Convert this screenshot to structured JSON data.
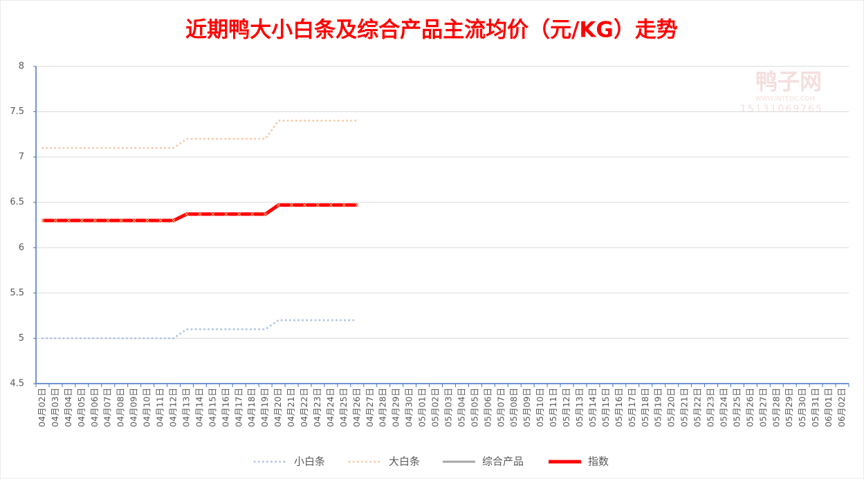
{
  "chart_data": {
    "type": "line",
    "title": "近期鸭大小白条及综合产品主流均价（元/KG）走势",
    "categories": [
      "04月02日",
      "04月03日",
      "04月04日",
      "04月05日",
      "04月06日",
      "04月07日",
      "04月08日",
      "04月09日",
      "04月10日",
      "04月11日",
      "04月12日",
      "04月13日",
      "04月14日",
      "04月15日",
      "04月16日",
      "04月17日",
      "04月18日",
      "04月19日",
      "04月20日",
      "04月21日",
      "04月22日",
      "04月23日",
      "04月24日",
      "04月25日",
      "04月26日",
      "04月27日",
      "04月28日",
      "04月29日",
      "04月30日",
      "05月01日",
      "05月02日",
      "05月03日",
      "05月04日",
      "05月05日",
      "05月06日",
      "05月07日",
      "05月08日",
      "05月09日",
      "05月10日",
      "05月11日",
      "05月12日",
      "05月13日",
      "05月14日",
      "05月15日",
      "05月16日",
      "05月17日",
      "05月18日",
      "05月19日",
      "05月20日",
      "05月21日",
      "05月22日",
      "05月23日",
      "05月24日",
      "05月25日",
      "05月26日",
      "05月27日",
      "05月28日",
      "05月29日",
      "05月30日",
      "05月31日",
      "06月01日",
      "06月02日"
    ],
    "series": [
      {
        "name": "小白条",
        "color": "#b4c7e7",
        "style": "dotted",
        "values": [
          5,
          5,
          5,
          5,
          5,
          5,
          5,
          5,
          5,
          5,
          5,
          5.1,
          5.1,
          5.1,
          5.1,
          5.1,
          5.1,
          5.1,
          5.2,
          5.2,
          5.2,
          5.2,
          5.2,
          5.2,
          5.2,
          null,
          null,
          null,
          null,
          null,
          null,
          null,
          null,
          null,
          null,
          null,
          null,
          null,
          null,
          null,
          null,
          null,
          null,
          null,
          null,
          null,
          null,
          null,
          null,
          null,
          null,
          null,
          null,
          null,
          null,
          null,
          null,
          null,
          null,
          null,
          null,
          null
        ]
      },
      {
        "name": "大白条",
        "color": "#f8cbad",
        "style": "dotted",
        "values": [
          7.1,
          7.1,
          7.1,
          7.1,
          7.1,
          7.1,
          7.1,
          7.1,
          7.1,
          7.1,
          7.1,
          7.2,
          7.2,
          7.2,
          7.2,
          7.2,
          7.2,
          7.2,
          7.4,
          7.4,
          7.4,
          7.4,
          7.4,
          7.4,
          7.4,
          null,
          null,
          null,
          null,
          null,
          null,
          null,
          null,
          null,
          null,
          null,
          null,
          null,
          null,
          null,
          null,
          null,
          null,
          null,
          null,
          null,
          null,
          null,
          null,
          null,
          null,
          null,
          null,
          null,
          null,
          null,
          null,
          null,
          null,
          null,
          null,
          null
        ]
      },
      {
        "name": "综合产品",
        "color": "#a5a5a5",
        "style": "solid",
        "values": [
          null,
          null,
          null,
          null,
          null,
          null,
          null,
          null,
          null,
          null,
          null,
          null,
          null,
          null,
          null,
          null,
          null,
          null,
          null,
          null,
          null,
          null,
          null,
          null,
          null,
          null,
          null,
          null,
          null,
          null,
          null,
          null,
          null,
          null,
          null,
          null,
          null,
          null,
          null,
          null,
          null,
          null,
          null,
          null,
          null,
          null,
          null,
          null,
          null,
          null,
          null,
          null,
          null,
          null,
          null,
          null,
          null,
          null,
          null,
          null,
          null,
          null
        ]
      },
      {
        "name": "指数",
        "color": "#ff0000",
        "style": "thick",
        "values": [
          6.3,
          6.3,
          6.3,
          6.3,
          6.3,
          6.3,
          6.3,
          6.3,
          6.3,
          6.3,
          6.3,
          6.37,
          6.37,
          6.37,
          6.37,
          6.37,
          6.37,
          6.37,
          6.47,
          6.47,
          6.47,
          6.47,
          6.47,
          6.47,
          6.47,
          null,
          null,
          null,
          null,
          null,
          null,
          null,
          null,
          null,
          null,
          null,
          null,
          null,
          null,
          null,
          null,
          null,
          null,
          null,
          null,
          null,
          null,
          null,
          null,
          null,
          null,
          null,
          null,
          null,
          null,
          null,
          null,
          null,
          null,
          null,
          null,
          null
        ]
      }
    ],
    "ylim": [
      4.5,
      8
    ],
    "yticks": [
      4.5,
      5,
      5.5,
      6,
      6.5,
      7,
      7.5,
      8
    ],
    "grid": true,
    "legend": "bottom",
    "watermark": {
      "name": "鸭子网",
      "url": "WWW.INTEDC.COM",
      "phone": "15131069765"
    }
  }
}
